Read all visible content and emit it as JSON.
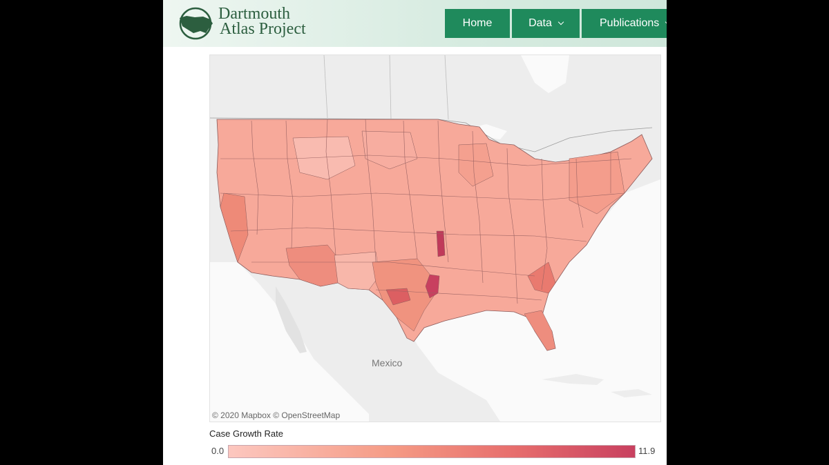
{
  "header": {
    "logo_line1": "Dartmouth",
    "logo_line2": "Atlas Project",
    "logo_icon": "us-map-icon",
    "nav": [
      {
        "label": "Home",
        "has_dropdown": false
      },
      {
        "label": "Data",
        "has_dropdown": true
      },
      {
        "label": "Publications",
        "has_dropdown": true
      }
    ],
    "nav_color": "#1f8a5c"
  },
  "map": {
    "labels": {
      "mexico": "Mexico"
    },
    "attribution": "© 2020 Mapbox  © OpenStreetMap"
  },
  "legend": {
    "title": "Case Growth Rate",
    "min": "0.0",
    "max": "11.9",
    "colors": [
      "#fcc7bf",
      "#f59b85",
      "#e76e6d",
      "#c8405f"
    ]
  }
}
